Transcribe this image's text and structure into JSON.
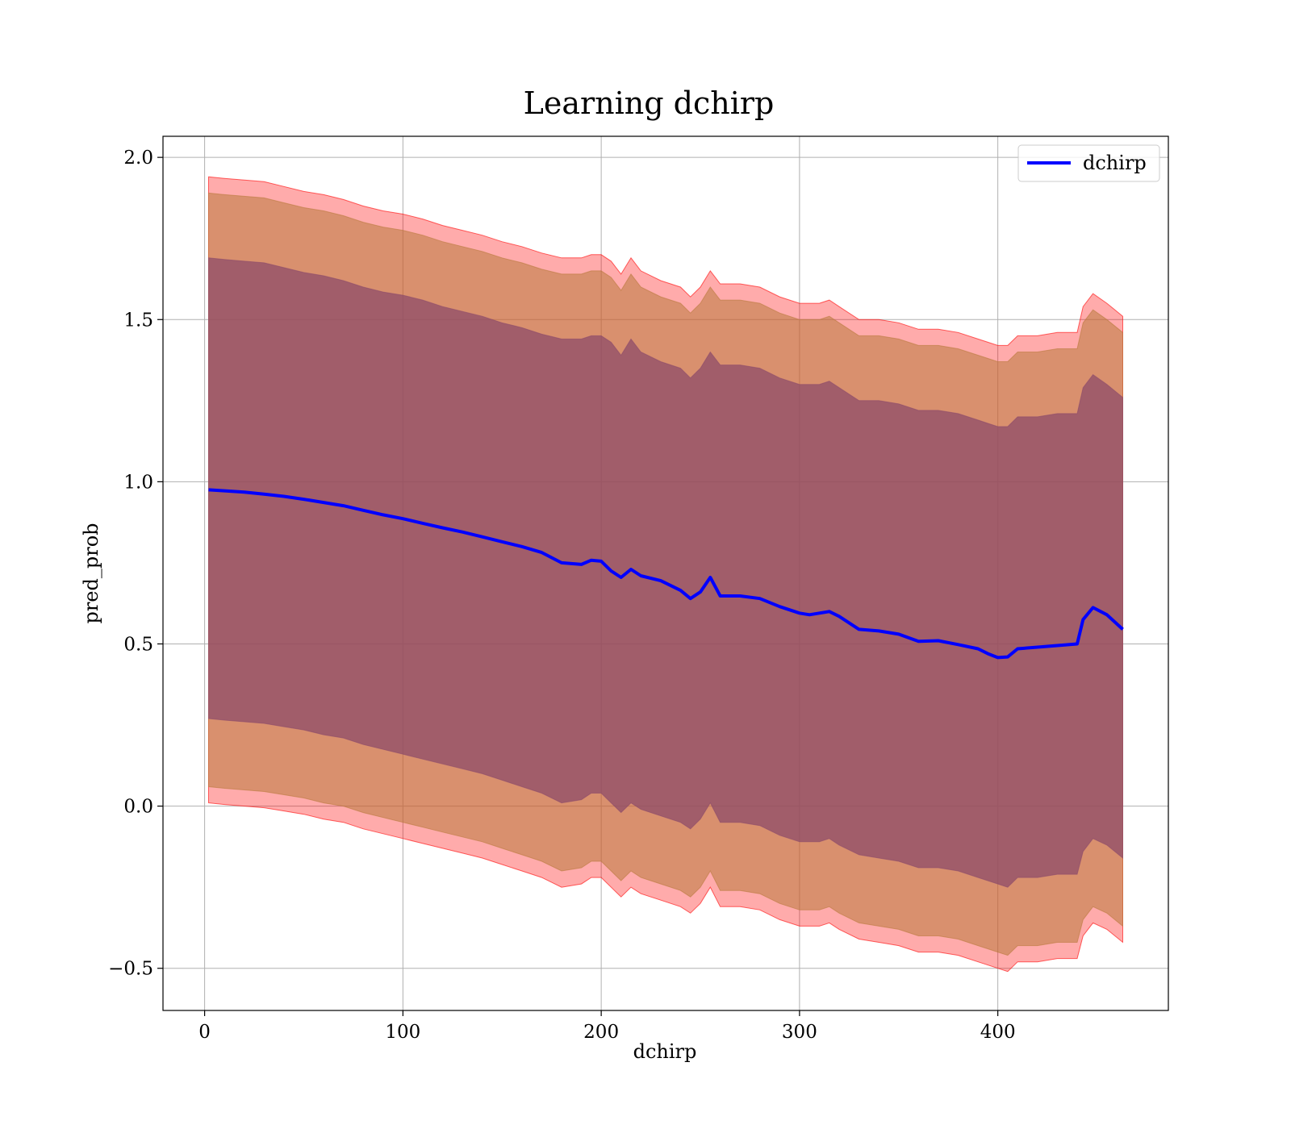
{
  "chart_data": {
    "type": "line",
    "title": "Learning dchirp",
    "xlabel": "dchirp",
    "ylabel": "pred_prob",
    "xlim": [
      -21,
      486
    ],
    "ylim": [
      -0.63,
      2.065
    ],
    "xticks": [
      0,
      100,
      200,
      300,
      400
    ],
    "xtick_labels": [
      "0",
      "100",
      "200",
      "300",
      "400"
    ],
    "yticks": [
      -0.5,
      0.0,
      0.5,
      1.0,
      1.5,
      2.0
    ],
    "ytick_labels": [
      "−0.5",
      "0.0",
      "0.5",
      "1.0",
      "1.5",
      "2.0"
    ],
    "grid": true,
    "legend": {
      "placement": "top-right",
      "entries": [
        {
          "label": "dchirp",
          "color": "#0000ff"
        }
      ]
    },
    "series": [
      {
        "name": "dchirp",
        "color": "#0000ff",
        "x": [
          2,
          10,
          20,
          30,
          40,
          50,
          60,
          70,
          80,
          90,
          100,
          110,
          120,
          130,
          140,
          150,
          160,
          170,
          180,
          190,
          195,
          200,
          205,
          210,
          215,
          220,
          230,
          240,
          245,
          250,
          255,
          260,
          270,
          280,
          290,
          300,
          305,
          310,
          315,
          320,
          330,
          340,
          350,
          360,
          370,
          380,
          390,
          395,
          400,
          405,
          410,
          420,
          430,
          440,
          443,
          448,
          455,
          463
        ],
        "y": [
          0.975,
          0.972,
          0.968,
          0.962,
          0.955,
          0.946,
          0.936,
          0.926,
          0.912,
          0.898,
          0.886,
          0.872,
          0.858,
          0.845,
          0.83,
          0.815,
          0.8,
          0.782,
          0.75,
          0.745,
          0.758,
          0.755,
          0.725,
          0.705,
          0.73,
          0.71,
          0.695,
          0.665,
          0.64,
          0.66,
          0.705,
          0.648,
          0.648,
          0.64,
          0.615,
          0.595,
          0.59,
          0.595,
          0.6,
          0.585,
          0.545,
          0.54,
          0.53,
          0.508,
          0.51,
          0.498,
          0.485,
          0.47,
          0.458,
          0.46,
          0.485,
          0.49,
          0.495,
          0.5,
          0.575,
          0.612,
          0.59,
          0.545
        ]
      }
    ],
    "bands": [
      {
        "name": "outer",
        "color": "#ff0000",
        "opacity": 0.33,
        "upper": [
          1.94,
          1.935,
          1.93,
          1.925,
          1.91,
          1.895,
          1.885,
          1.87,
          1.85,
          1.835,
          1.825,
          1.81,
          1.79,
          1.775,
          1.76,
          1.74,
          1.725,
          1.705,
          1.69,
          1.69,
          1.7,
          1.7,
          1.68,
          1.64,
          1.69,
          1.65,
          1.62,
          1.6,
          1.57,
          1.6,
          1.65,
          1.61,
          1.61,
          1.6,
          1.57,
          1.55,
          1.55,
          1.55,
          1.56,
          1.54,
          1.5,
          1.5,
          1.49,
          1.47,
          1.47,
          1.46,
          1.44,
          1.43,
          1.42,
          1.42,
          1.45,
          1.45,
          1.46,
          1.46,
          1.54,
          1.58,
          1.55,
          1.51
        ],
        "lower": [
          0.01,
          0.005,
          0.0,
          -0.005,
          -0.015,
          -0.025,
          -0.04,
          -0.05,
          -0.07,
          -0.085,
          -0.1,
          -0.115,
          -0.13,
          -0.145,
          -0.16,
          -0.18,
          -0.2,
          -0.22,
          -0.25,
          -0.24,
          -0.22,
          -0.22,
          -0.25,
          -0.28,
          -0.25,
          -0.27,
          -0.29,
          -0.31,
          -0.33,
          -0.3,
          -0.25,
          -0.31,
          -0.31,
          -0.32,
          -0.35,
          -0.37,
          -0.37,
          -0.37,
          -0.36,
          -0.38,
          -0.41,
          -0.42,
          -0.43,
          -0.45,
          -0.45,
          -0.46,
          -0.48,
          -0.49,
          -0.5,
          -0.51,
          -0.48,
          -0.48,
          -0.47,
          -0.47,
          -0.4,
          -0.36,
          -0.38,
          -0.42
        ]
      },
      {
        "name": "middle",
        "color": "#b97a3d",
        "opacity": 0.55,
        "upper": [
          1.89,
          1.885,
          1.88,
          1.875,
          1.86,
          1.845,
          1.835,
          1.82,
          1.8,
          1.785,
          1.775,
          1.76,
          1.74,
          1.725,
          1.71,
          1.69,
          1.675,
          1.655,
          1.64,
          1.64,
          1.65,
          1.65,
          1.63,
          1.59,
          1.64,
          1.6,
          1.57,
          1.55,
          1.52,
          1.55,
          1.6,
          1.56,
          1.56,
          1.55,
          1.52,
          1.5,
          1.5,
          1.5,
          1.51,
          1.49,
          1.45,
          1.45,
          1.44,
          1.42,
          1.42,
          1.41,
          1.39,
          1.38,
          1.37,
          1.37,
          1.4,
          1.4,
          1.41,
          1.41,
          1.49,
          1.53,
          1.5,
          1.46
        ],
        "lower": [
          0.06,
          0.055,
          0.05,
          0.045,
          0.035,
          0.025,
          0.01,
          0.0,
          -0.02,
          -0.035,
          -0.05,
          -0.065,
          -0.08,
          -0.095,
          -0.11,
          -0.13,
          -0.15,
          -0.17,
          -0.2,
          -0.19,
          -0.17,
          -0.17,
          -0.2,
          -0.23,
          -0.2,
          -0.22,
          -0.24,
          -0.26,
          -0.28,
          -0.25,
          -0.2,
          -0.26,
          -0.26,
          -0.27,
          -0.3,
          -0.32,
          -0.32,
          -0.32,
          -0.31,
          -0.33,
          -0.36,
          -0.37,
          -0.38,
          -0.4,
          -0.4,
          -0.41,
          -0.43,
          -0.44,
          -0.45,
          -0.46,
          -0.43,
          -0.43,
          -0.42,
          -0.42,
          -0.35,
          -0.31,
          -0.33,
          -0.37
        ]
      },
      {
        "name": "inner",
        "color": "#8a4a6a",
        "opacity": 0.72,
        "upper": [
          1.69,
          1.685,
          1.68,
          1.675,
          1.66,
          1.645,
          1.635,
          1.62,
          1.6,
          1.585,
          1.575,
          1.56,
          1.54,
          1.525,
          1.51,
          1.49,
          1.475,
          1.455,
          1.44,
          1.44,
          1.45,
          1.45,
          1.43,
          1.39,
          1.44,
          1.4,
          1.37,
          1.35,
          1.32,
          1.35,
          1.4,
          1.36,
          1.36,
          1.35,
          1.32,
          1.3,
          1.3,
          1.3,
          1.31,
          1.29,
          1.25,
          1.25,
          1.24,
          1.22,
          1.22,
          1.21,
          1.19,
          1.18,
          1.17,
          1.17,
          1.2,
          1.2,
          1.21,
          1.21,
          1.29,
          1.33,
          1.3,
          1.26
        ],
        "lower": [
          0.27,
          0.265,
          0.26,
          0.255,
          0.245,
          0.235,
          0.22,
          0.21,
          0.19,
          0.175,
          0.16,
          0.145,
          0.13,
          0.115,
          0.1,
          0.08,
          0.06,
          0.04,
          0.01,
          0.02,
          0.04,
          0.04,
          0.01,
          -0.02,
          0.01,
          -0.01,
          -0.03,
          -0.05,
          -0.07,
          -0.04,
          0.01,
          -0.05,
          -0.05,
          -0.06,
          -0.09,
          -0.11,
          -0.11,
          -0.11,
          -0.1,
          -0.12,
          -0.15,
          -0.16,
          -0.17,
          -0.19,
          -0.19,
          -0.2,
          -0.22,
          -0.23,
          -0.24,
          -0.25,
          -0.22,
          -0.22,
          -0.21,
          -0.21,
          -0.14,
          -0.1,
          -0.12,
          -0.16
        ]
      }
    ]
  }
}
